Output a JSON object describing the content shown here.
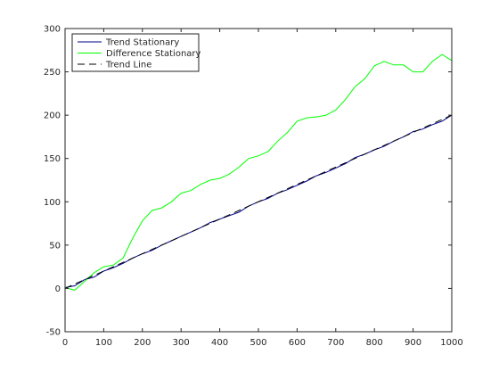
{
  "chart_data": {
    "type": "line",
    "xlim": [
      0,
      1000
    ],
    "ylim": [
      -50,
      300
    ],
    "xticks": [
      0,
      100,
      200,
      300,
      400,
      500,
      600,
      700,
      800,
      900,
      1000
    ],
    "yticks": [
      -50,
      0,
      50,
      100,
      150,
      200,
      250,
      300
    ],
    "grid": false,
    "legend_position": "top-left",
    "series": [
      {
        "name": "Trend Stationary",
        "color": "#00008b",
        "style": "solid",
        "x": [
          0,
          25,
          50,
          75,
          100,
          125,
          150,
          175,
          200,
          225,
          250,
          275,
          300,
          325,
          350,
          375,
          400,
          425,
          450,
          475,
          500,
          525,
          550,
          575,
          600,
          625,
          650,
          675,
          700,
          725,
          750,
          775,
          800,
          825,
          850,
          875,
          900,
          925,
          950,
          975,
          1000
        ],
        "y": [
          1,
          3,
          10,
          13,
          20,
          24,
          29,
          35,
          40,
          44,
          50,
          55,
          60,
          65,
          70,
          76,
          80,
          84,
          88,
          95,
          100,
          104,
          110,
          114,
          119,
          124,
          130,
          134,
          139,
          144,
          151,
          155,
          160,
          164,
          170,
          175,
          181,
          184,
          189,
          193,
          200
        ]
      },
      {
        "name": "Difference Stationary",
        "color": "#00ff00",
        "style": "solid",
        "x": [
          0,
          25,
          50,
          75,
          100,
          125,
          150,
          175,
          200,
          225,
          250,
          275,
          300,
          325,
          350,
          375,
          400,
          425,
          450,
          475,
          500,
          525,
          550,
          575,
          600,
          625,
          650,
          675,
          700,
          725,
          750,
          775,
          800,
          825,
          850,
          875,
          900,
          925,
          950,
          975,
          1000
        ],
        "y": [
          1,
          -2,
          8,
          18,
          25,
          27,
          35,
          58,
          78,
          90,
          93,
          100,
          110,
          113,
          120,
          125,
          127,
          132,
          140,
          150,
          153,
          158,
          170,
          180,
          193,
          197,
          198,
          200,
          206,
          218,
          233,
          242,
          257,
          262,
          258,
          258,
          250,
          250,
          262,
          270,
          263
        ]
      },
      {
        "name": "Trend Line",
        "color": "#000000",
        "style": "dashed",
        "x": [
          0,
          1000
        ],
        "y": [
          0,
          200
        ]
      }
    ]
  }
}
